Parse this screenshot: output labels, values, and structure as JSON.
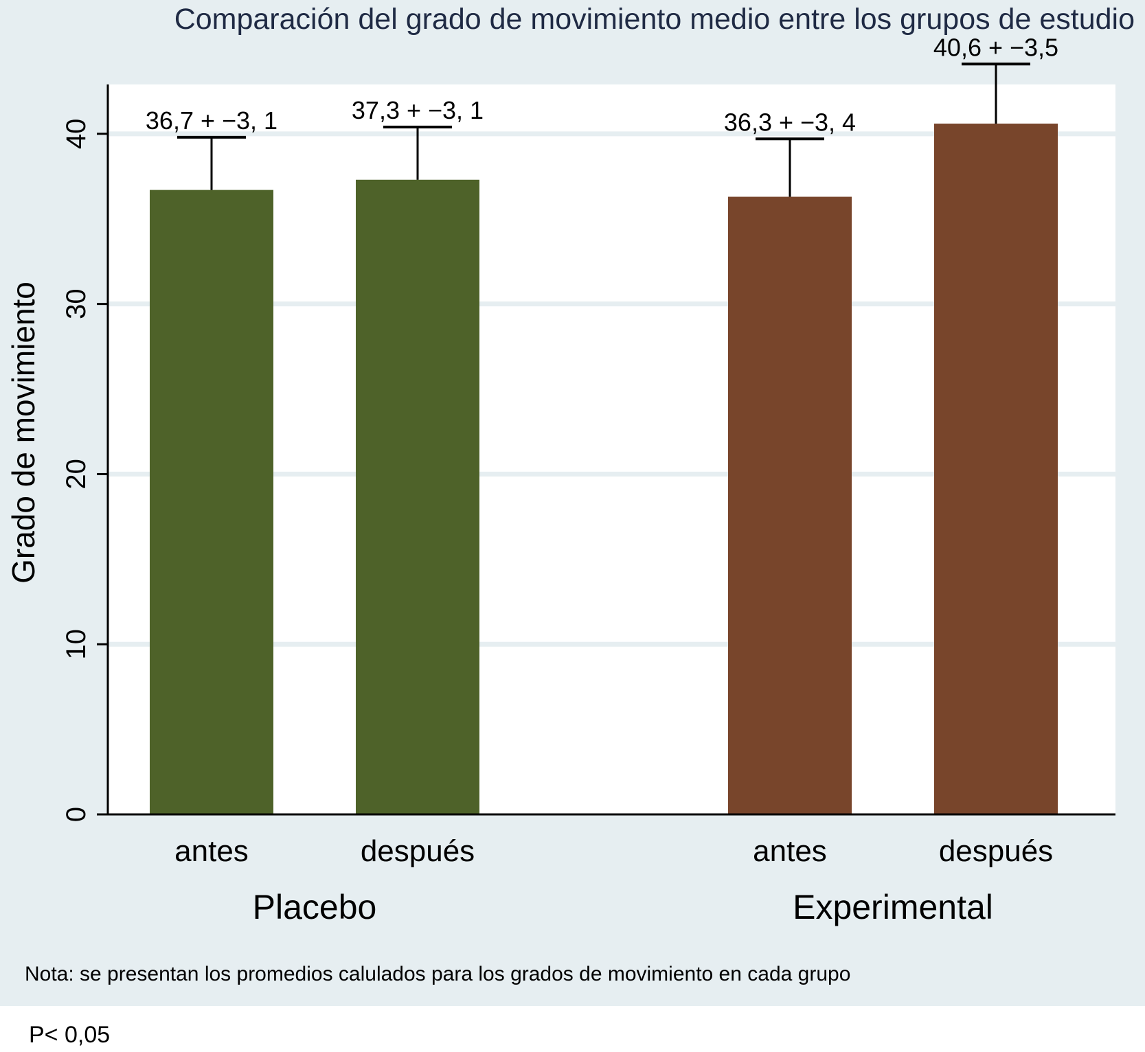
{
  "chart_data": {
    "type": "bar",
    "title": "Comparación del grado de movimiento medio entre los grupos de estudio",
    "ylabel": "Grado de movimiento",
    "ylim": [
      0,
      42.9
    ],
    "yticks": [
      0,
      10,
      20,
      30,
      40
    ],
    "grid": true,
    "groups": [
      {
        "name": "Placebo",
        "color": "#4e6229",
        "bars": [
          {
            "category": "antes",
            "value": 36.7,
            "error": 3.1,
            "label": "36,7 + −3, 1"
          },
          {
            "category": "después",
            "value": 37.3,
            "error": 3.1,
            "label": "37,3 + −3, 1"
          }
        ]
      },
      {
        "name": "Experimental",
        "color": "#78452b",
        "bars": [
          {
            "category": "antes",
            "value": 36.3,
            "error": 3.4,
            "label": "36,3 + −3, 4"
          },
          {
            "category": "después",
            "value": 40.6,
            "error": 3.5,
            "label": "40,6 + −3,5"
          }
        ]
      }
    ]
  },
  "note": "Nota: se presentan los promedios calulados para los grados de movimiento en cada grupo",
  "pvalue": "P< 0,05"
}
